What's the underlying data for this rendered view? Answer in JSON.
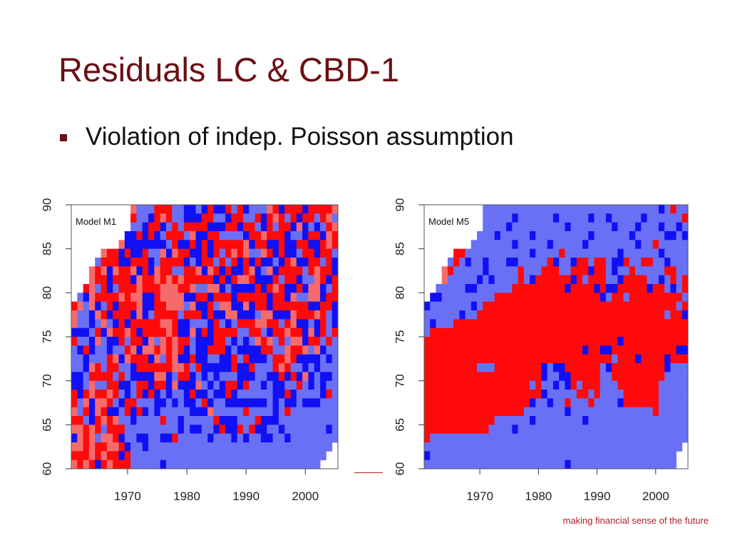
{
  "slide": {
    "title": "Residuals LC & CBD-1",
    "bullet": "Violation of indep. Poisson assumption",
    "tagline": "making financial sense of the future"
  },
  "colors": {
    "title": "#6b0f14",
    "strong_positive": "#ff0a0a",
    "weak_positive": "#f56b6b",
    "weak_negative": "#6a70f5",
    "strong_negative": "#1010f5",
    "missing": "#ffffff"
  },
  "chart_data": [
    {
      "type": "heatmap",
      "title": "",
      "panel_label": "Model M1",
      "xlabel": "",
      "ylabel": "",
      "x_ticks": [
        1970,
        1980,
        1990,
        2000
      ],
      "y_ticks": [
        60,
        65,
        70,
        75,
        80,
        85,
        90
      ],
      "xlim": [
        1961,
        2005
      ],
      "ylim": [
        60,
        90
      ],
      "sign_grid_legend": "P = strong positive residual, p = weak positive, n = weak negative, N = strong negative, . = not estimated",
      "grid_years": [
        1961,
        2005
      ],
      "grid_ages": [
        60,
        89
      ],
      "grid": [
        "..........pnnnPPPnnNNnNPNNPnPNnnnpPNPPPNPPPPp",
        "..........PnnNPpPnnNNNPPnnNPPnnPNPpPnPNPPnPpn",
        "..........nnNPPNnPnPPPPNNNPPNPPnNPnPPNpNnNnPp",
        ".........NNPNPNnPPPnpNNPPnnnnNPPpPPPNnnNPPNpP",
        "........pNNNNNNNnPNNPNPNPPPPPpNPPNNPNNPPNNPpP",
        ".....pPPNPNNPnnpNpPPNNPNPnPpPpnnpPNPNNnPPNPPn",
        "....nPPPNNPPPNnPPPPNnNPPnPnPNPNPNNnNPpNNPPnPN",
        "...pPpNpPPpNPNpPPnnPPpNpPNPNNPpNnpNPPPPnPpPPN",
        "...pPPNPPPNpPPpPpPpPPPPPNPNPppPNNNPnPPNnnpPNP",
        "..PpnPNnPPPpPPPpppPPpnnppNnNNNNPNPpPNNPNppNnP",
        ".nNpPPPPpPppNNPppppNNPPNPPPNPPPPPNPPNpnnppNPP",
        "PpnpNnPNPPPpNNPPpppnpNNPnppNNpNPPNPPPPPPNNPPN",
        "pnnNpPNPPPNpNnPPPPnPPPNPNNppNNNnppNNNpPPPpPnN",
        "pnnNnpnNPNPPPPPppPNNnnnNPnNnPPPppPPnPpNNnNPnN",
        "NNNnPNpPPpPNPPPPpPNNpNPNPPPPnnPPnNPPpPPNpNPnP",
        "PnnNpnNNPnPPNpnpPpPPnNNNPPnNnNnpPpnPnppNPPnPn",
        "nNPNnnNnnPpNppPpPpPNnNNPPPNnNNNNPPnnpPPpnpNnn",
        "nnNnnnPpNpPPPNpnPpNNPNNnnNNPnPNNNnPPpPNNNNnNn",
        "nnNpPnPPnnNPPPPPPppPnPNNNNNPNNPnnnPpPnnNnNnnn",
        "NNnPPPPnPnNNNNppNnPPNnNnNnnnNNNnnNNPNPNpNnNNn",
        "NNnpnnPPNNnPPNPPNpNNNpnNnNPPNPnnNnNNnnPnNnNnn",
        "PNPpPPpPnNnPNPNnNnnNPNNnNNPNnnnnnnNNPNnnnnNPn",
        "PnpNppPnNPPnnnNNnNnNNnPNnnNNNNNNNnNnNNnNNNnnn",
        "pnPNpPNNnPNPNnNnnnnnNNNpnnnnnPnnnnNnPnnnnnnnn",
        "PPnNPpPpnnNnnnnPnnNnnnnnPNNNnnnPNNNnnnnnnnnnn",
        "ppPpPnPPPnnnnnnnnnNnNNnnNPNNPnPNNnnNnnnnnnnNn",
        "NpPpnppPNnnNNnnNNPnnnnnNnnnNnNnnNNnnNnnnnnnnn",
        "ppPpPPppPNnnNnnnnnnnnnnnnnnnnnnnnnnnnnnnnnnn.",
        "PPPpPpPPNPnnnnnnnnnnnnnnnnnnnnnnnnnnnnnnnnn..",
        "pPpPNPpPPPnnnnnNnnnnnnnnnnnnnnnnnnnnnnnnnn..."
      ]
    },
    {
      "type": "heatmap",
      "title": "",
      "panel_label": "Model M5",
      "xlabel": "",
      "ylabel": "",
      "x_ticks": [
        1970,
        1980,
        1990,
        2000
      ],
      "y_ticks": [
        60,
        65,
        70,
        75,
        80,
        85,
        90
      ],
      "xlim": [
        1961,
        2005
      ],
      "ylim": [
        60,
        90
      ],
      "sign_grid_legend": "P = strong positive residual, p = weak positive, n = weak negative, N = strong negative, . = not estimated",
      "grid_years": [
        1961,
        2005
      ],
      "grid_ages": [
        60,
        89
      ],
      "grid": [
        "..........nnnnnnnnnnnnnnnnnnnnnnnnnnnnnnNnPnn",
        "..........nnnnnNnnnnnnNnnnnnNnnNnnnnnNnnnnnnP",
        "..........nnnnNnnnnnnnnnNnnnnnnnNnnnNnnnNnnNn",
        ".........nnnNnnnnnNnnnnnnnnnNnnnnnnNnnnnnNNnN",
        "........nnnnnnnNnnnnnNnnnnnNnnnnnnnnNnnPnnnnn",
        ".....PPnnnnnnnnnnnNnnnnPnnnnnnnnnNnnnnnnNnnnn",
        "....nPnNnnNnnnNNnnnnnPNnnNPPnPPnNNPnnPPnnNnnn",
        "...pPnnnnnNnnnnnPnnnPPPnnPPPNPPnNnnPnnnnnPPnn",
        "...pnnnnnNnNnnnnPnNPPPPPPNPnPPPnnNPPPPnnNnPnP",
        "..nnnnnNNnnnnnnPPPPPPPPPNPPPPNPNNPPPPPNPPnNnP",
        ".NNnnnnnnnnnPPPPPPPPPPPPPPPPPPNnPPnPPPPPPPPPn",
        "NnnnnnnnNnPPPPPPPPPPPPPPPPPPPPPPPPPPPPPPPPPnP",
        "nnnnnnNnnPPPPPPPPPPPPPPPPPPPPPPPPPPPPPPPPnPPN",
        "nNnnnPPPPPPPPPPPPPPPPPPPPPPPPPPPPPPPPPPPPPPPP",
        "nPPPPPPPPPPPPPPPPPPPPPPPPPPPPPPPPPPPPPPPPPPPP",
        "PPPPPPPPPPPPPPPPPPPPPPPPPPPPPPPPPNPPPPPPPPPPP",
        "PPPPPPPPPPPPPPPPPPPPPPPPPPPNPPNNPPPPPPPPPPPNN",
        "PPPPPPPPPPPPPPPPPPPPPPPPPPPPPPPPnPPPNPPPPNPPP",
        "PPPPPPPPPnnnPPPPPPPPNnNNPPPPPPnNPPPPPPPPPNnnn",
        "PPPPPPPPPPPPPPPPPPPPNnnNNPPPPPnnPPPPPPPPPnnnn",
        "PPPPPPPPPPPPPPPPPPnPnnNnNPnPPPnnnPPPPPPPnnnnn",
        "PPPPPPPPPPPPPPPPPPPPNnnnnnPPnPnnnnPPPPPPnnnnn",
        "PPPPPPPPPPPPPPPPPPNnnNnnPnnnPnnnnNPPPPPPnnnnn",
        "PPPPPPPPPPPPPPPPPnnnnnnnNnnnnnnnnnnnnnnPnnnnn",
        "PPPPPPPPPPPPnnnnnnNnnnnnnnnNnnnnnnnnnnnnnnnnn",
        "PPPPPPPPPPPnnnnNnnnnnnnnnnnnnnnnnnnnnnnnnnnnn",
        "Pnnnnnnnnnnnnnnnnnnnnnnnnnnnnnnnnnnnnnnnnnnnn",
        "nnnnnnnnnnnnnnnnnnnnnnnnnnnnnnnnnnnnnnnnnnnn.",
        "Nnnnnnnnnnnnnnnnnnnnnnnnnnnnnnnnnnnnnnnnnnn..",
        "nnnnnnnnnnnnnnnnnnnnnnnnNnnnnnnnnnnnnnnnnnn..."
      ]
    }
  ]
}
